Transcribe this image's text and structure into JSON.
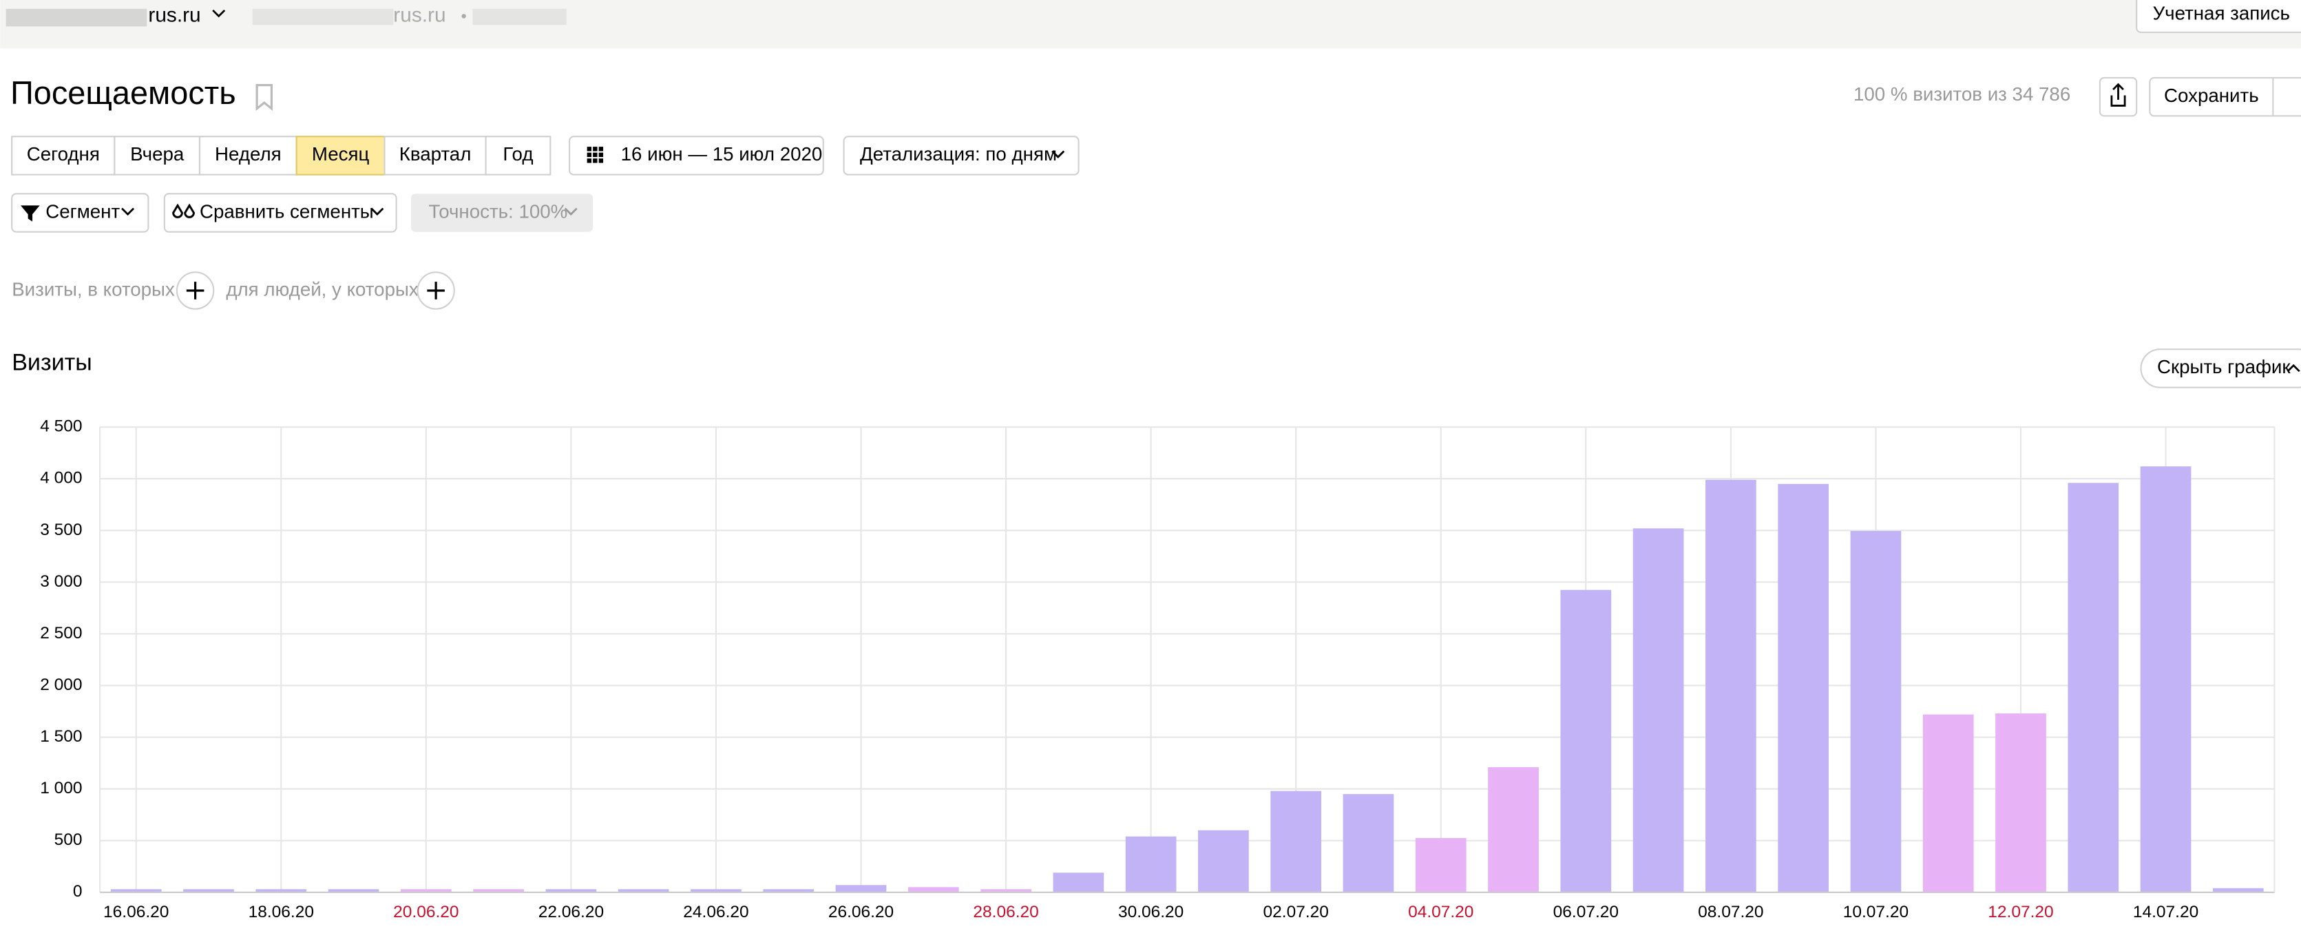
{
  "header": {
    "site": "rus.ru",
    "site2": "rus.ru",
    "account": "Учетная запись"
  },
  "report": {
    "title": "Посещаемость",
    "summary": "100 % визитов из 34 786",
    "save": "Сохранить"
  },
  "periods": {
    "items": [
      "Сегодня",
      "Вчера",
      "Неделя",
      "Месяц",
      "Квартал",
      "Год"
    ],
    "active": 3
  },
  "date_range": "16 июн — 15 июл 2020",
  "detail": "Детализация: по дням",
  "segment": "Сегмент",
  "compare": "Сравнить сегменты",
  "accuracy": "Точность: 100%",
  "filter": {
    "visits": "Визиты, в которых",
    "people": "для людей, у которых"
  },
  "hide_chart": "Скрыть график",
  "chart_data": {
    "type": "bar",
    "title": "Визиты",
    "categories": [
      "16.06.20",
      null,
      "18.06.20",
      null,
      "20.06.20",
      null,
      "22.06.20",
      null,
      "24.06.20",
      null,
      "26.06.20",
      null,
      "28.06.20",
      null,
      "30.06.20",
      null,
      "02.07.20",
      null,
      "04.07.20",
      null,
      "06.07.20",
      null,
      "08.07.20",
      null,
      "10.07.20",
      null,
      "12.07.20",
      null,
      "14.07.20",
      null
    ],
    "values": [
      30,
      30,
      30,
      30,
      30,
      30,
      30,
      30,
      30,
      30,
      70,
      50,
      30,
      190,
      540,
      600,
      980,
      950,
      525,
      1210,
      2925,
      3520,
      3990,
      3950,
      3495,
      1720,
      1730,
      3960,
      4120,
      40
    ],
    "colors": [
      "#c2b3f7",
      "#c2b3f7",
      "#c2b3f7",
      "#c2b3f7",
      "#e8b2f7",
      "#e8b2f7",
      "#c2b3f7",
      "#c2b3f7",
      "#c2b3f7",
      "#c2b3f7",
      "#c2b3f7",
      "#e8b2f7",
      "#e8b2f7",
      "#c2b3f7",
      "#c2b3f7",
      "#c2b3f7",
      "#c2b3f7",
      "#c2b3f7",
      "#e8b2f7",
      "#e8b2f7",
      "#c2b3f7",
      "#c2b3f7",
      "#c2b3f7",
      "#c2b3f7",
      "#c2b3f7",
      "#e8b2f7",
      "#e8b2f7",
      "#c2b3f7",
      "#c2b3f7",
      "#c2b3f7"
    ],
    "label_colors": [
      "#000",
      null,
      "#000",
      null,
      "#c8102e",
      null,
      "#000",
      null,
      "#000",
      null,
      "#000",
      null,
      "#c8102e",
      null,
      "#000",
      null,
      "#000",
      null,
      "#c8102e",
      null,
      "#000",
      null,
      "#000",
      null,
      "#000",
      null,
      "#c8102e",
      null,
      "#000",
      null
    ],
    "ylim": [
      0,
      4500
    ],
    "yticks": [
      0,
      500,
      {
        "value": 1000,
        "label": "1 000"
      },
      {
        "value": 1500,
        "label": "1 500"
      },
      {
        "value": 2000,
        "label": "2 000"
      },
      {
        "value": 2500,
        "label": "2 500"
      },
      {
        "value": 3000,
        "label": "3 000"
      },
      {
        "value": 3500,
        "label": "3 500"
      },
      {
        "value": 4000,
        "label": "4 000"
      },
      {
        "value": 4500,
        "label": "4 500"
      }
    ],
    "grid": true
  }
}
